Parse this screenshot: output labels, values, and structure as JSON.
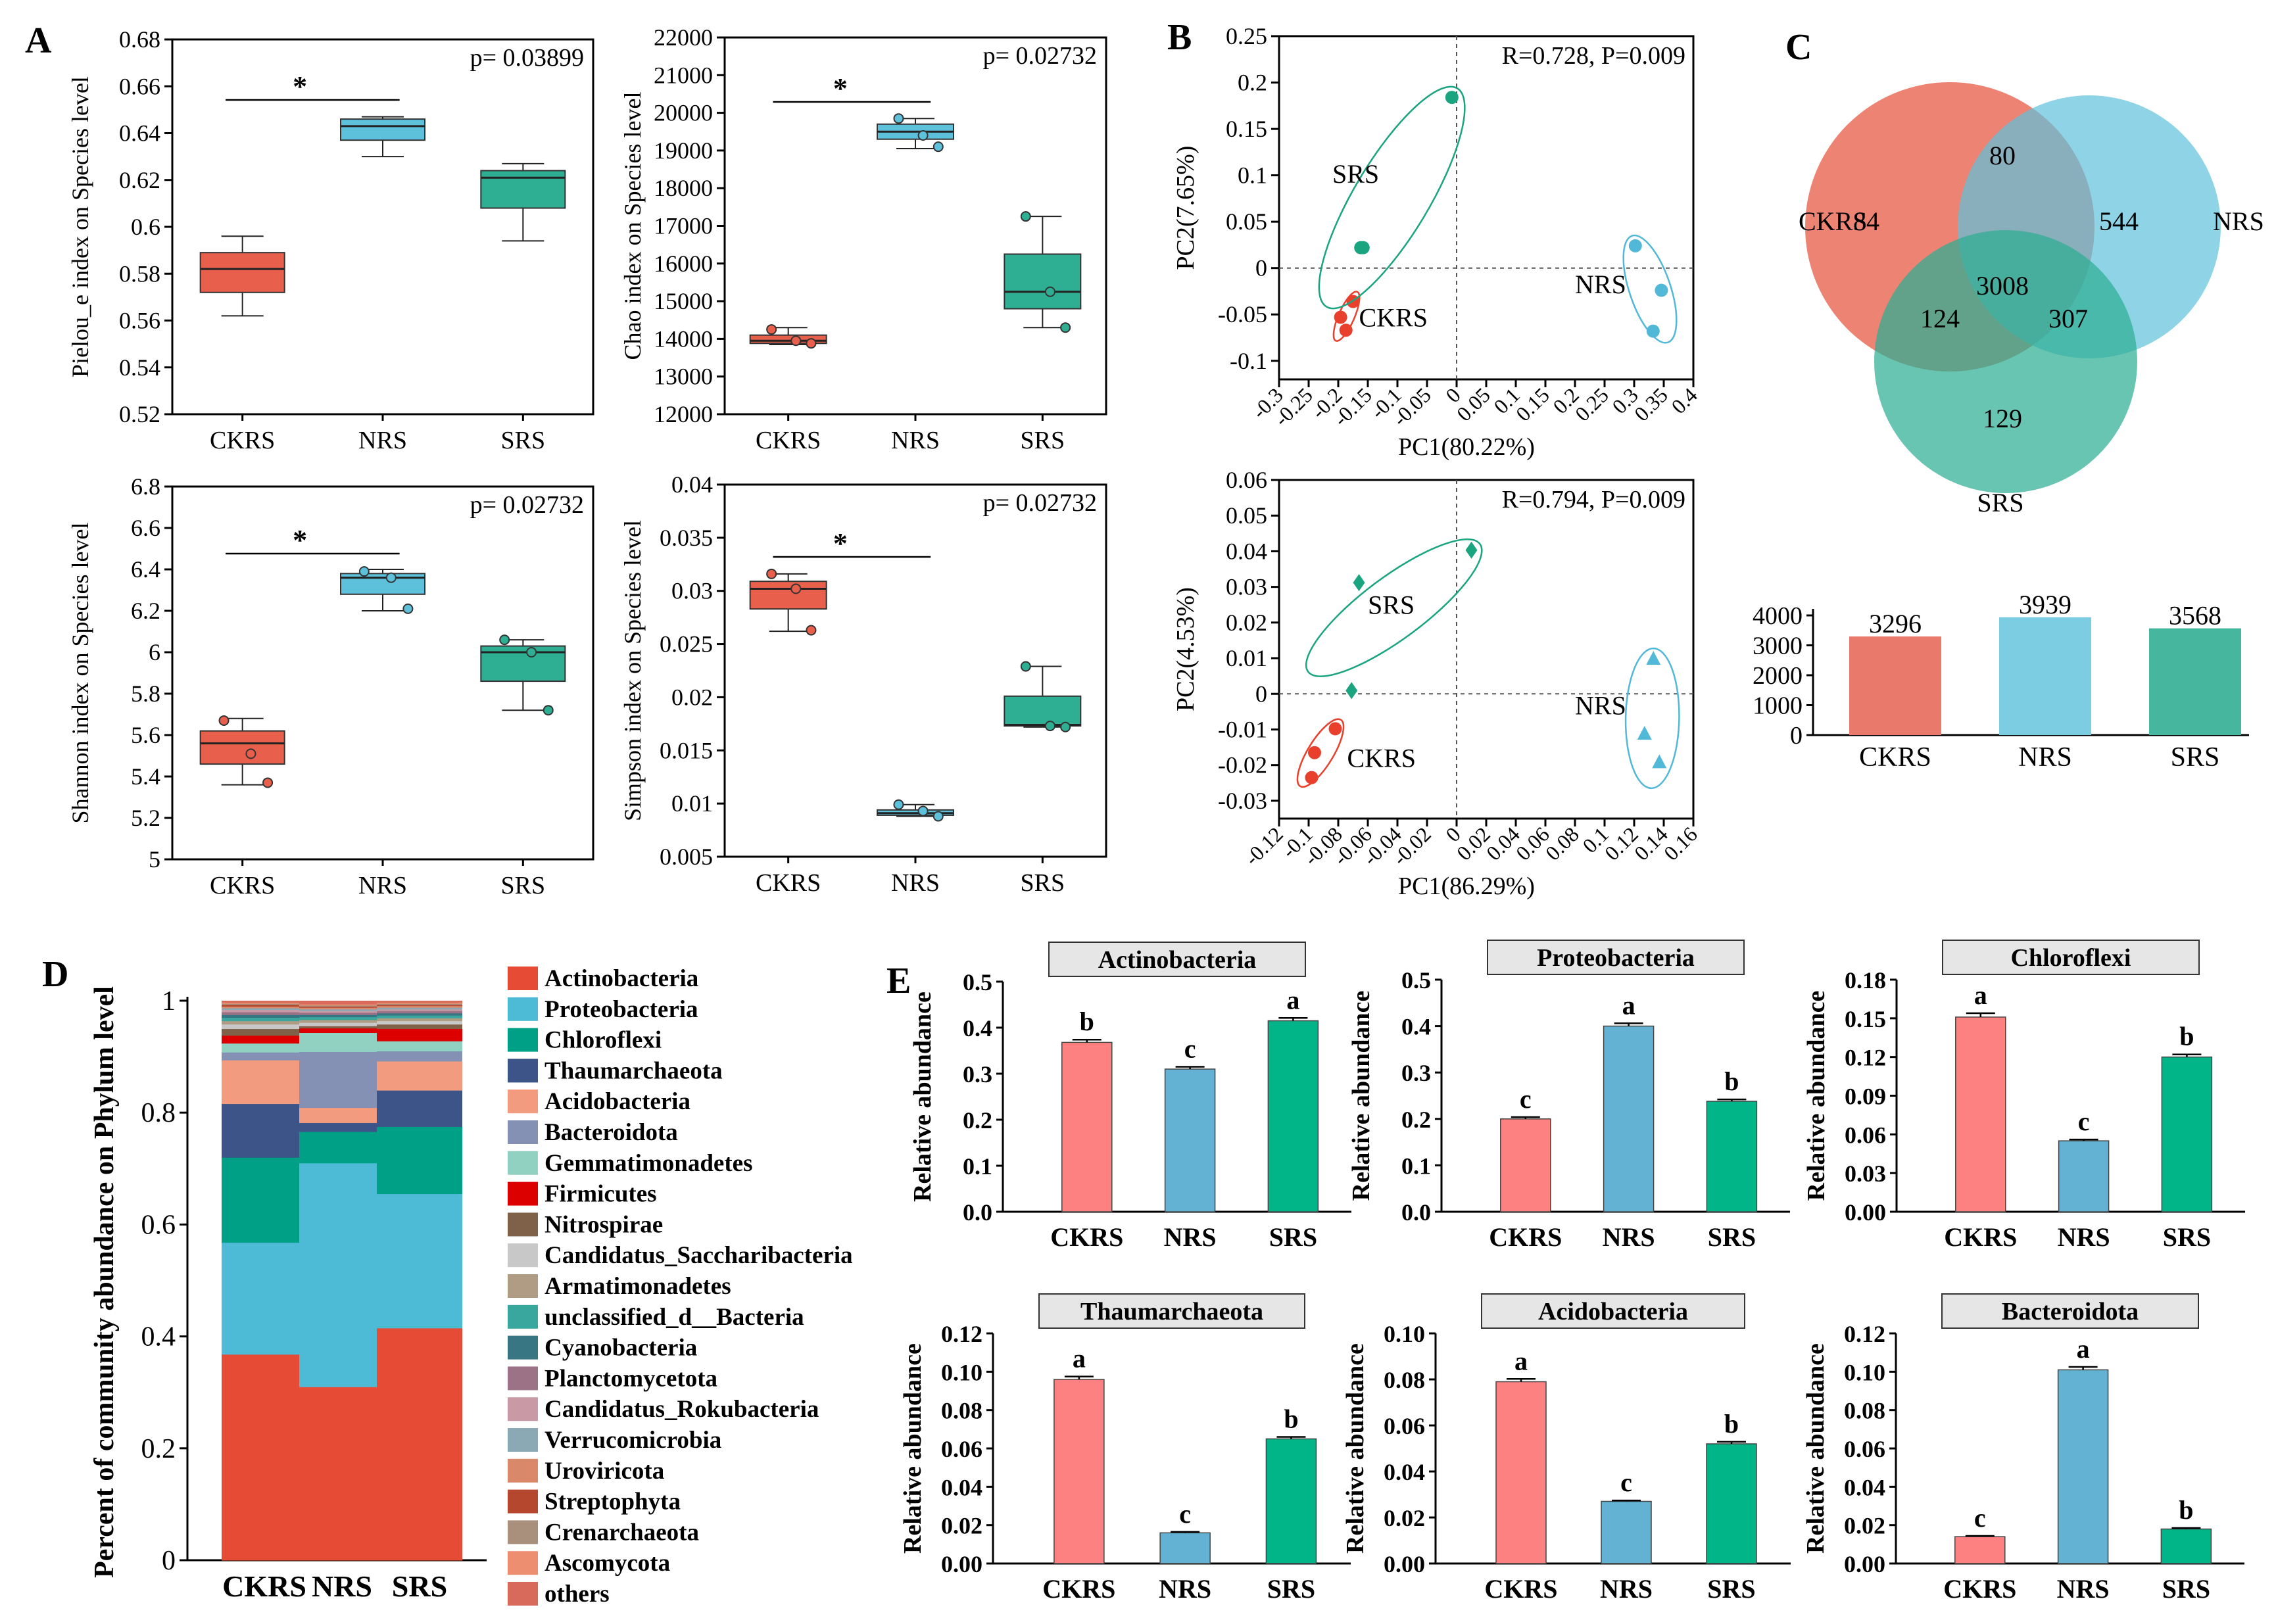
{
  "figure_title": "",
  "colors": {
    "ckrs": "#e8604c",
    "nrs": "#5ec1dc",
    "srs": "#2eaf93",
    "ckrs_bar": "#fd8180",
    "nrs_bar": "#63b1d3",
    "srs_bar": "#01b589",
    "ckrs_venn_bar": "#e9796a",
    "nrs_venn_bar": "#7ccde2",
    "srs_venn_bar": "#46b79e",
    "pca_ckrs": "#e8402c",
    "pca_nrs": "#52b8d8",
    "pca_srs": "#1aa47f",
    "strip": "#e6e6e6"
  },
  "chart_data": [
    {
      "panel": "A",
      "type": "box",
      "title": "",
      "xlabel": "",
      "ylabel": "Pielou_e index on Species level",
      "categories": [
        "CKRS",
        "NRS",
        "SRS"
      ],
      "ylim": [
        0.52,
        0.68
      ],
      "yticks": [
        0.52,
        0.54,
        0.56,
        0.58,
        0.6,
        0.62,
        0.64,
        0.66,
        0.68
      ],
      "pvalue": "p= 0.03899",
      "significance": {
        "label": "*",
        "from": "CKRS",
        "to": "NRS"
      },
      "boxes": [
        {
          "min": 0.562,
          "q1": 0.572,
          "median": 0.582,
          "q3": 0.589,
          "max": 0.596,
          "points": []
        },
        {
          "min": 0.63,
          "q1": 0.637,
          "median": 0.643,
          "q3": 0.646,
          "max": 0.647,
          "points": []
        },
        {
          "min": 0.594,
          "q1": 0.608,
          "median": 0.621,
          "q3": 0.624,
          "max": 0.627,
          "points": []
        }
      ]
    },
    {
      "panel": "A",
      "type": "box",
      "title": "",
      "xlabel": "",
      "ylabel": "Chao index on Species level",
      "categories": [
        "CKRS",
        "NRS",
        "SRS"
      ],
      "ylim": [
        12000,
        22000
      ],
      "yticks": [
        12000,
        13000,
        14000,
        15000,
        16000,
        17000,
        18000,
        19000,
        20000,
        21000,
        22000
      ],
      "pvalue": "p= 0.02732",
      "significance": {
        "label": "*",
        "from": "CKRS",
        "to": "NRS"
      },
      "boxes": [
        {
          "min": 13850,
          "q1": 13880,
          "median": 13950,
          "q3": 14100,
          "max": 14300,
          "points": [
            14250,
            13950,
            13880
          ]
        },
        {
          "min": 19050,
          "q1": 19300,
          "median": 19500,
          "q3": 19700,
          "max": 19850,
          "points": [
            19850,
            19400,
            19100
          ]
        },
        {
          "min": 14300,
          "q1": 14800,
          "median": 15250,
          "q3": 16250,
          "max": 17250,
          "points": [
            17250,
            15250,
            14300
          ]
        }
      ]
    },
    {
      "panel": "A",
      "type": "box",
      "title": "",
      "xlabel": "",
      "ylabel": "Shannon index on Species level",
      "categories": [
        "CKRS",
        "NRS",
        "SRS"
      ],
      "ylim": [
        5,
        6.8
      ],
      "yticks": [
        5,
        5.2,
        5.4,
        5.6,
        5.8,
        6,
        6.2,
        6.4,
        6.6,
        6.8
      ],
      "pvalue": "p= 0.02732",
      "significance": {
        "label": "*",
        "from": "CKRS",
        "to": "NRS"
      },
      "boxes": [
        {
          "min": 5.36,
          "q1": 5.46,
          "median": 5.56,
          "q3": 5.62,
          "max": 5.68,
          "points": [
            5.67,
            5.51,
            5.37
          ]
        },
        {
          "min": 6.2,
          "q1": 6.28,
          "median": 6.36,
          "q3": 6.38,
          "max": 6.4,
          "points": [
            6.39,
            6.36,
            6.21
          ]
        },
        {
          "min": 5.72,
          "q1": 5.86,
          "median": 6.0,
          "q3": 6.03,
          "max": 6.06,
          "points": [
            6.06,
            6.0,
            5.72
          ]
        }
      ]
    },
    {
      "panel": "A",
      "type": "box",
      "title": "",
      "xlabel": "",
      "ylabel": "Simpson index on Species level",
      "categories": [
        "CKRS",
        "NRS",
        "SRS"
      ],
      "ylim": [
        0.005,
        0.04
      ],
      "yticks": [
        0.005,
        0.01,
        0.015,
        0.02,
        0.025,
        0.03,
        0.035,
        0.04
      ],
      "pvalue": "p= 0.02732",
      "significance": {
        "label": "*",
        "from": "CKRS",
        "to": "NRS"
      },
      "boxes": [
        {
          "min": 0.0262,
          "q1": 0.0283,
          "median": 0.0302,
          "q3": 0.0309,
          "max": 0.0316,
          "points": [
            0.0316,
            0.0302,
            0.0263
          ]
        },
        {
          "min": 0.0088,
          "q1": 0.0089,
          "median": 0.0091,
          "q3": 0.0094,
          "max": 0.0099,
          "points": [
            0.0099,
            0.0093,
            0.0088
          ]
        },
        {
          "min": 0.0172,
          "q1": 0.0173,
          "median": 0.0174,
          "q3": 0.0201,
          "max": 0.0229,
          "points": [
            0.0229,
            0.0173,
            0.0172
          ]
        }
      ]
    },
    {
      "panel": "B",
      "type": "scatter",
      "title": "",
      "xlabel": "PC1(80.22%)",
      "ylabel": "PC2(7.65%)",
      "annotation": "R=0.728, P=0.009",
      "xlim": [
        -0.3,
        0.4
      ],
      "ylim": [
        -0.12,
        0.25
      ],
      "xticks": [
        -0.3,
        -0.25,
        -0.2,
        -0.15,
        -0.1,
        -0.05,
        0,
        0.05,
        0.1,
        0.15,
        0.2,
        0.25,
        0.3,
        0.35,
        0.4
      ],
      "xtick_labels": [
        "-0.3",
        "-0.25",
        "-0.2",
        "-0.15",
        "-0.1",
        "-0.05",
        "0",
        "0.05",
        "0.1",
        "0.15",
        "0.2",
        "0.25",
        "0.3",
        "0.35",
        "0.4"
      ],
      "yticks": [
        -0.1,
        -0.05,
        0,
        0.05,
        0.1,
        0.15,
        0.2,
        0.25
      ],
      "ytick_labels": [
        "-0.1",
        "-0.05",
        "0",
        "0.05",
        "0.1",
        "0.15",
        "0.2",
        "0.25"
      ],
      "marker": "circle",
      "series": [
        {
          "name": "CKRS",
          "points": [
            [
              -0.196,
              -0.053
            ],
            [
              -0.187,
              -0.067
            ],
            [
              -0.175,
              -0.036
            ]
          ],
          "label_at": [
            -0.165,
            -0.063
          ]
        },
        {
          "name": "NRS",
          "points": [
            [
              0.302,
              0.024
            ],
            [
              0.332,
              -0.068
            ],
            [
              0.346,
              -0.024
            ]
          ],
          "label_at": [
            0.2,
            -0.027
          ]
        },
        {
          "name": "SRS",
          "points": [
            [
              -0.162,
              0.022
            ],
            [
              -0.158,
              0.022
            ],
            [
              -0.008,
              0.184
            ]
          ],
          "label_at": [
            -0.21,
            0.092
          ]
        }
      ]
    },
    {
      "panel": "B",
      "type": "scatter",
      "title": "",
      "xlabel": "PC1(86.29%)",
      "ylabel": "PC2(4.53%)",
      "annotation": "R=0.794, P=0.009",
      "xlim": [
        -0.12,
        0.16
      ],
      "ylim": [
        -0.035,
        0.06
      ],
      "xticks": [
        -0.12,
        -0.1,
        -0.08,
        -0.06,
        -0.04,
        -0.02,
        0,
        0.02,
        0.04,
        0.06,
        0.08,
        0.1,
        0.12,
        0.14,
        0.16
      ],
      "xtick_labels": [
        "-0.12",
        "-0.1",
        "-0.08",
        "-0.06",
        "-0.04",
        "-0.02",
        "0",
        "0.02",
        "0.04",
        "0.06",
        "0.08",
        "0.1",
        "0.12",
        "0.14",
        "0.16"
      ],
      "yticks": [
        -0.03,
        -0.02,
        -0.01,
        0,
        0.01,
        0.02,
        0.03,
        0.04,
        0.05,
        0.06
      ],
      "ytick_labels": [
        "-0.03",
        "-0.02",
        "-0.01",
        "0",
        "0.01",
        "0.02",
        "0.03",
        "0.04",
        "0.05",
        "0.06"
      ],
      "marker": "mixed",
      "series": [
        {
          "name": "CKRS",
          "marker": "circle",
          "points": [
            [
              -0.098,
              -0.0235
            ],
            [
              -0.096,
              -0.0165
            ],
            [
              -0.082,
              -0.0098
            ]
          ],
          "label_at": [
            -0.074,
            -0.0205
          ]
        },
        {
          "name": "NRS",
          "marker": "triangle",
          "points": [
            [
              0.127,
              -0.0112
            ],
            [
              0.133,
              0.0098
            ],
            [
              0.137,
              -0.0192
            ]
          ],
          "label_at": [
            0.08,
            -0.0058
          ]
        },
        {
          "name": "SRS",
          "marker": "diamond",
          "points": [
            [
              -0.071,
              0.0009
            ],
            [
              -0.066,
              0.0312
            ],
            [
              0.01,
              0.0403
            ]
          ],
          "label_at": [
            -0.06,
            0.0225
          ]
        }
      ]
    },
    {
      "panel": "C",
      "type": "venn",
      "title": "",
      "sets": [
        "CKRS",
        "NRS",
        "SRS"
      ],
      "regions": {
        "ckrs_only": 84,
        "nrs_only": 544,
        "srs_only": 129,
        "ckrs_nrs": 80,
        "ckrs_srs": 124,
        "nrs_srs": 307,
        "all": 3008
      }
    },
    {
      "panel": "C",
      "type": "bar",
      "title": "",
      "xlabel": "",
      "ylabel": "",
      "categories": [
        "CKRS",
        "NRS",
        "SRS"
      ],
      "values": [
        3296,
        3939,
        3568
      ],
      "ylim": [
        0,
        4000
      ],
      "yticks": [
        0,
        1000,
        2000,
        3000,
        4000
      ]
    },
    {
      "panel": "D",
      "type": "stacked_bar",
      "title": "",
      "xlabel": "",
      "ylabel": "Percent of community abundance on Phylum level",
      "categories": [
        "CKRS",
        "NRS",
        "SRS"
      ],
      "ylim": [
        0,
        1
      ],
      "yticks": [
        0,
        0.2,
        0.4,
        0.6,
        0.8,
        1
      ],
      "ytick_labels": [
        "0",
        "0.2",
        "0.4",
        "0.6",
        "0.8",
        "1"
      ],
      "legend_position": "right",
      "series": [
        {
          "name": "Actinobacteria",
          "color": "#e64b35",
          "values": [
            0.368,
            0.31,
            0.415
          ]
        },
        {
          "name": "Proteobacteria",
          "color": "#4dbbd5",
          "values": [
            0.2,
            0.4,
            0.24
          ]
        },
        {
          "name": "Chloroflexi",
          "color": "#00a087",
          "values": [
            0.152,
            0.056,
            0.12
          ]
        },
        {
          "name": "Thaumarchaeota",
          "color": "#3c5488",
          "values": [
            0.096,
            0.016,
            0.065
          ]
        },
        {
          "name": "Acidobacteria",
          "color": "#f39b7f",
          "values": [
            0.078,
            0.027,
            0.052
          ]
        },
        {
          "name": "Bacteroidota",
          "color": "#8491b4",
          "values": [
            0.014,
            0.1,
            0.018
          ]
        },
        {
          "name": "Gemmatimonadetes",
          "color": "#91d1c2",
          "values": [
            0.016,
            0.034,
            0.018
          ]
        },
        {
          "name": "Firmicutes",
          "color": "#dc0000",
          "values": [
            0.014,
            0.008,
            0.022
          ]
        },
        {
          "name": "Nitrospirae",
          "color": "#7e6148",
          "values": [
            0.012,
            0.004,
            0.008
          ]
        },
        {
          "name": "Candidatus_Saccharibacteria",
          "color": "#c8c8c8",
          "values": [
            0.008,
            0.006,
            0.006
          ]
        },
        {
          "name": "Armatimonadetes",
          "color": "#b09c85",
          "values": [
            0.006,
            0.005,
            0.005
          ]
        },
        {
          "name": "unclassified_d__Bacteria",
          "color": "#3aa79f",
          "values": [
            0.006,
            0.005,
            0.005
          ]
        },
        {
          "name": "Cyanobacteria",
          "color": "#387683",
          "values": [
            0.005,
            0.004,
            0.004
          ]
        },
        {
          "name": "Planctomycetota",
          "color": "#9c7286",
          "values": [
            0.005,
            0.004,
            0.004
          ]
        },
        {
          "name": "Candidatus_Rokubacteria",
          "color": "#c99aa6",
          "values": [
            0.004,
            0.003,
            0.003
          ]
        },
        {
          "name": "Verrucomicrobia",
          "color": "#8aa9b4",
          "values": [
            0.003,
            0.003,
            0.003
          ]
        },
        {
          "name": "Uroviricota",
          "color": "#d9896a",
          "values": [
            0.003,
            0.003,
            0.003
          ]
        },
        {
          "name": "Streptophyta",
          "color": "#b5472f",
          "values": [
            0.003,
            0.002,
            0.002
          ]
        },
        {
          "name": "Crenarchaeota",
          "color": "#a8907c",
          "values": [
            0.002,
            0.002,
            0.002
          ]
        },
        {
          "name": "Ascomycota",
          "color": "#ee8e70",
          "values": [
            0.002,
            0.002,
            0.002
          ]
        },
        {
          "name": "others",
          "color": "#d86a5c",
          "values": [
            0.003,
            0.006,
            0.003
          ]
        }
      ]
    },
    {
      "panel": "E",
      "type": "bar",
      "title": "Actinobacteria",
      "xlabel": "",
      "ylabel": "Relative abundance",
      "categories": [
        "CKRS",
        "NRS",
        "SRS"
      ],
      "values": [
        0.368,
        0.31,
        0.415
      ],
      "errors": [
        0.006,
        0.005,
        0.006
      ],
      "letters": [
        "b",
        "c",
        "a"
      ],
      "ylim": [
        0,
        0.5
      ],
      "yticks": [
        0,
        0.1,
        0.2,
        0.3,
        0.4,
        0.5
      ],
      "ytick_labels": [
        "0.0",
        "0.1",
        "0.2",
        "0.3",
        "0.4",
        "0.5"
      ]
    },
    {
      "panel": "E",
      "type": "bar",
      "title": "Proteobacteria",
      "xlabel": "",
      "ylabel": "Relative abundance",
      "categories": [
        "CKRS",
        "NRS",
        "SRS"
      ],
      "values": [
        0.2,
        0.4,
        0.238
      ],
      "errors": [
        0.004,
        0.006,
        0.004
      ],
      "letters": [
        "c",
        "a",
        "b"
      ],
      "ylim": [
        0,
        0.5
      ],
      "yticks": [
        0,
        0.1,
        0.2,
        0.3,
        0.4,
        0.5
      ],
      "ytick_labels": [
        "0.0",
        "0.1",
        "0.2",
        "0.3",
        "0.4",
        "0.5"
      ]
    },
    {
      "panel": "E",
      "type": "bar",
      "title": "Chloroflexi",
      "xlabel": "",
      "ylabel": "Relative abundance",
      "categories": [
        "CKRS",
        "NRS",
        "SRS"
      ],
      "values": [
        0.151,
        0.055,
        0.12
      ],
      "errors": [
        0.003,
        0.001,
        0.002
      ],
      "letters": [
        "a",
        "c",
        "b"
      ],
      "ylim": [
        0,
        0.18
      ],
      "yticks": [
        0,
        0.03,
        0.06,
        0.09,
        0.12,
        0.15,
        0.18
      ],
      "ytick_labels": [
        "0.00",
        "0.03",
        "0.06",
        "0.09",
        "0.12",
        "0.15",
        "0.18"
      ]
    },
    {
      "panel": "E",
      "type": "bar",
      "title": "Thaumarchaeota",
      "xlabel": "",
      "ylabel": "Relative abundance",
      "categories": [
        "CKRS",
        "NRS",
        "SRS"
      ],
      "values": [
        0.096,
        0.016,
        0.065
      ],
      "errors": [
        0.0015,
        0.0005,
        0.001
      ],
      "letters": [
        "a",
        "c",
        "b"
      ],
      "ylim": [
        0,
        0.12
      ],
      "yticks": [
        0,
        0.02,
        0.04,
        0.06,
        0.08,
        0.1,
        0.12
      ],
      "ytick_labels": [
        "0.00",
        "0.02",
        "0.04",
        "0.06",
        "0.08",
        "0.10",
        "0.12"
      ]
    },
    {
      "panel": "E",
      "type": "bar",
      "title": "Acidobacteria",
      "xlabel": "",
      "ylabel": "Relative abundance",
      "categories": [
        "CKRS",
        "NRS",
        "SRS"
      ],
      "values": [
        0.079,
        0.027,
        0.052
      ],
      "errors": [
        0.0012,
        0.0004,
        0.0009
      ],
      "letters": [
        "a",
        "c",
        "b"
      ],
      "ylim": [
        0,
        0.1
      ],
      "yticks": [
        0,
        0.02,
        0.04,
        0.06,
        0.08,
        0.1
      ],
      "ytick_labels": [
        "0.00",
        "0.02",
        "0.04",
        "0.06",
        "0.08",
        "0.10"
      ]
    },
    {
      "panel": "E",
      "type": "bar",
      "title": "Bacteroidota",
      "xlabel": "",
      "ylabel": "Relative abundance",
      "categories": [
        "CKRS",
        "NRS",
        "SRS"
      ],
      "values": [
        0.014,
        0.101,
        0.018
      ],
      "errors": [
        0.0004,
        0.0015,
        0.0005
      ],
      "letters": [
        "c",
        "a",
        "b"
      ],
      "ylim": [
        0,
        0.12
      ],
      "yticks": [
        0,
        0.02,
        0.04,
        0.06,
        0.08,
        0.1,
        0.12
      ],
      "ytick_labels": [
        "0.00",
        "0.02",
        "0.04",
        "0.06",
        "0.08",
        "0.10",
        "0.12"
      ]
    }
  ],
  "panel_labels": [
    "A",
    "B",
    "C",
    "D",
    "E"
  ]
}
